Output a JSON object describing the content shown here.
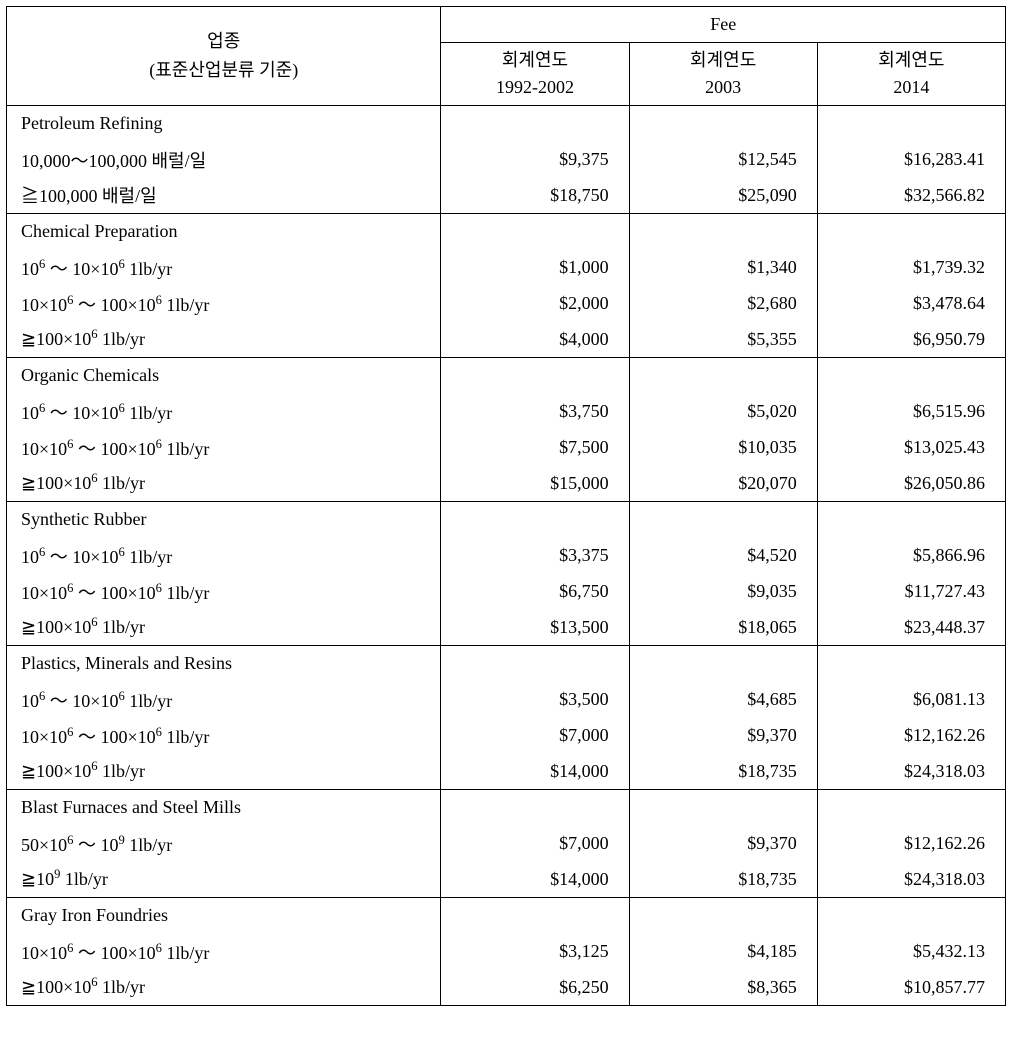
{
  "header": {
    "industry_line1": "업종",
    "industry_line2": "(표준산업분류 기준)",
    "fee": "Fee",
    "fy_label": "회계연도",
    "period1": "1992-2002",
    "period2": "2003",
    "period3": "2014"
  },
  "groups": [
    {
      "category": "Petroleum Refining",
      "rows": [
        {
          "label_html": "10,000～100,000 배럴/일",
          "v1": "$9,375",
          "v2": "$12,545",
          "v3": "$16,283.41"
        },
        {
          "label_html": "≧100,000 배럴/일",
          "v1": "$18,750",
          "v2": "$25,090",
          "v3": "$32,566.82"
        }
      ]
    },
    {
      "category": "Chemical Preparation",
      "rows": [
        {
          "label_html": "10<sup>6</sup> ～ 10×10<sup>6</sup> 1lb/yr",
          "v1": "$1,000",
          "v2": "$1,340",
          "v3": "$1,739.32"
        },
        {
          "label_html": "10×10<sup>6</sup> ～ 100×10<sup>6</sup> 1lb/yr",
          "v1": "$2,000",
          "v2": "$2,680",
          "v3": "$3,478.64"
        },
        {
          "label_html": "≧100×10<sup>6</sup> 1lb/yr",
          "v1": "$4,000",
          "v2": "$5,355",
          "v3": "$6,950.79"
        }
      ]
    },
    {
      "category": "Organic Chemicals",
      "rows": [
        {
          "label_html": "10<sup>6</sup> ～ 10×10<sup>6</sup> 1lb/yr",
          "v1": "$3,750",
          "v2": "$5,020",
          "v3": "$6,515.96"
        },
        {
          "label_html": "10×10<sup>6</sup> ～ 100×10<sup>6</sup> 1lb/yr",
          "v1": "$7,500",
          "v2": "$10,035",
          "v3": "$13,025.43"
        },
        {
          "label_html": "≧100×10<sup>6</sup> 1lb/yr",
          "v1": "$15,000",
          "v2": "$20,070",
          "v3": "$26,050.86"
        }
      ]
    },
    {
      "category": "Synthetic Rubber",
      "rows": [
        {
          "label_html": "10<sup>6</sup> ～ 10×10<sup>6</sup> 1lb/yr",
          "v1": "$3,375",
          "v2": "$4,520",
          "v3": "$5,866.96"
        },
        {
          "label_html": "10×10<sup>6</sup> ～ 100×10<sup>6</sup> 1lb/yr",
          "v1": "$6,750",
          "v2": "$9,035",
          "v3": "$11,727.43"
        },
        {
          "label_html": "≧100×10<sup>6</sup> 1lb/yr",
          "v1": "$13,500",
          "v2": "$18,065",
          "v3": "$23,448.37"
        }
      ]
    },
    {
      "category": "Plastics, Minerals and Resins",
      "rows": [
        {
          "label_html": "10<sup>6</sup> ～ 10×10<sup>6</sup> 1lb/yr",
          "v1": "$3,500",
          "v2": "$4,685",
          "v3": "$6,081.13"
        },
        {
          "label_html": "10×10<sup>6</sup> ～ 100×10<sup>6</sup> 1lb/yr",
          "v1": "$7,000",
          "v2": "$9,370",
          "v3": "$12,162.26"
        },
        {
          "label_html": "≧100×10<sup>6</sup> 1lb/yr",
          "v1": "$14,000",
          "v2": "$18,735",
          "v3": "$24,318.03"
        }
      ]
    },
    {
      "category": "Blast Furnaces and Steel Mills",
      "rows": [
        {
          "label_html": "50×10<sup>6</sup> ～ 10<sup>9</sup> 1lb/yr",
          "v1": "$7,000",
          "v2": "$9,370",
          "v3": "$12,162.26"
        },
        {
          "label_html": "≧10<sup>9</sup> 1lb/yr",
          "v1": "$14,000",
          "v2": "$18,735",
          "v3": "$24,318.03"
        }
      ]
    },
    {
      "category": "Gray Iron Foundries",
      "rows": [
        {
          "label_html": "10×10<sup>6</sup> ～ 100×10<sup>6</sup> 1lb/yr",
          "v1": "$3,125",
          "v2": "$4,185",
          "v3": "$5,432.13"
        },
        {
          "label_html": "≧100×10<sup>6</sup> 1lb/yr",
          "v1": "$6,250",
          "v2": "$8,365",
          "v3": "$10,857.77"
        }
      ]
    }
  ]
}
